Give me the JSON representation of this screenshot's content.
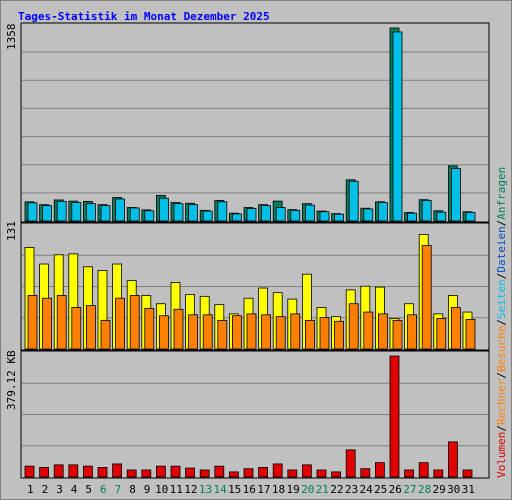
{
  "chart_data": [
    {
      "type": "bar",
      "title": "Tages-Statistik im Monat Dezember 2025",
      "categories": [
        "1",
        "2",
        "3",
        "4",
        "5",
        "6",
        "7",
        "8",
        "9",
        "10",
        "11",
        "12",
        "13",
        "14",
        "15",
        "16",
        "17",
        "18",
        "19",
        "20",
        "21",
        "22",
        "23",
        "24",
        "25",
        "26",
        "27",
        "28",
        "29",
        "30",
        "31"
      ],
      "weekend_days": [
        6,
        7,
        13,
        14,
        20,
        21,
        27,
        28
      ],
      "ylabel_max": "1358",
      "ylim": [
        0,
        1358
      ],
      "grid": true,
      "series": [
        {
          "name": "Anfragen",
          "color": "#008060",
          "values": [
            135,
            115,
            148,
            140,
            138,
            115,
            165,
            95,
            78,
            180,
            130,
            125,
            75,
            145,
            55,
            95,
            115,
            140,
            80,
            122,
            70,
            52,
            290,
            90,
            135,
            1358,
            60,
            150,
            72,
            388,
            65
          ]
        },
        {
          "name": "Dateien",
          "color": "#00C0E8",
          "values": [
            128,
            108,
            138,
            130,
            122,
            108,
            155,
            92,
            72,
            160,
            122,
            115,
            70,
            135,
            50,
            88,
            108,
            95,
            75,
            112,
            65,
            48,
            280,
            85,
            130,
            1330,
            55,
            145,
            62,
            370,
            60
          ]
        }
      ]
    },
    {
      "type": "bar",
      "categories": [
        "1",
        "2",
        "3",
        "4",
        "5",
        "6",
        "7",
        "8",
        "9",
        "10",
        "11",
        "12",
        "13",
        "14",
        "15",
        "16",
        "17",
        "18",
        "19",
        "20",
        "21",
        "22",
        "23",
        "24",
        "25",
        "26",
        "27",
        "28",
        "29",
        "30",
        "31"
      ],
      "ylabel_max": "131",
      "ylim": [
        0,
        131
      ],
      "grid": true,
      "series": [
        {
          "name": "Seiten",
          "color": "#FFFF00",
          "values": [
            110,
            92,
            102,
            103,
            89,
            85,
            92,
            74,
            58,
            49,
            72,
            59,
            57,
            48,
            38,
            55,
            66,
            61,
            54,
            81,
            45,
            35,
            64,
            68,
            67,
            33,
            49,
            124,
            38,
            58,
            40
          ]
        },
        {
          "name": "Besuche",
          "color": "#FF8000",
          "values": [
            58,
            55,
            58,
            45,
            47,
            31,
            55,
            58,
            44,
            36,
            43,
            37,
            37,
            31,
            36,
            38,
            37,
            35,
            38,
            31,
            34,
            30,
            49,
            40,
            38,
            31,
            37,
            112,
            33,
            45,
            32
          ]
        }
      ]
    },
    {
      "type": "bar",
      "categories": [
        "1",
        "2",
        "3",
        "4",
        "5",
        "6",
        "7",
        "8",
        "9",
        "10",
        "11",
        "12",
        "13",
        "14",
        "15",
        "16",
        "17",
        "18",
        "19",
        "20",
        "21",
        "22",
        "23",
        "24",
        "25",
        "26",
        "27",
        "28",
        "29",
        "30",
        "31"
      ],
      "ylabel_max": "379.12 KB",
      "ylim": [
        0,
        379.12
      ],
      "grid": true,
      "series": [
        {
          "name": "Volumen",
          "color": "#E00000",
          "values": [
            34,
            30,
            38,
            38,
            34,
            30,
            41,
            22,
            22,
            34,
            34,
            28,
            22,
            34,
            16,
            26,
            30,
            41,
            22,
            38,
            22,
            16,
            85,
            26,
            45,
            379,
            22,
            45,
            22,
            110,
            22
          ]
        }
      ]
    }
  ],
  "legend": {
    "top_items": [
      {
        "text": "Anfragen",
        "color": "#008060"
      },
      {
        "text": "Dateien",
        "color": "#0050C0"
      }
    ],
    "middle_items": [
      {
        "text": "Seiten",
        "color": "#00C0E8"
      },
      {
        "text": "Besuche",
        "color": "#FF8000"
      }
    ],
    "bottom_items": [
      {
        "text": "Rechner",
        "color": "#FF8000"
      },
      {
        "text": "Volumen",
        "color": "#E00000"
      }
    ],
    "separator": "/"
  }
}
